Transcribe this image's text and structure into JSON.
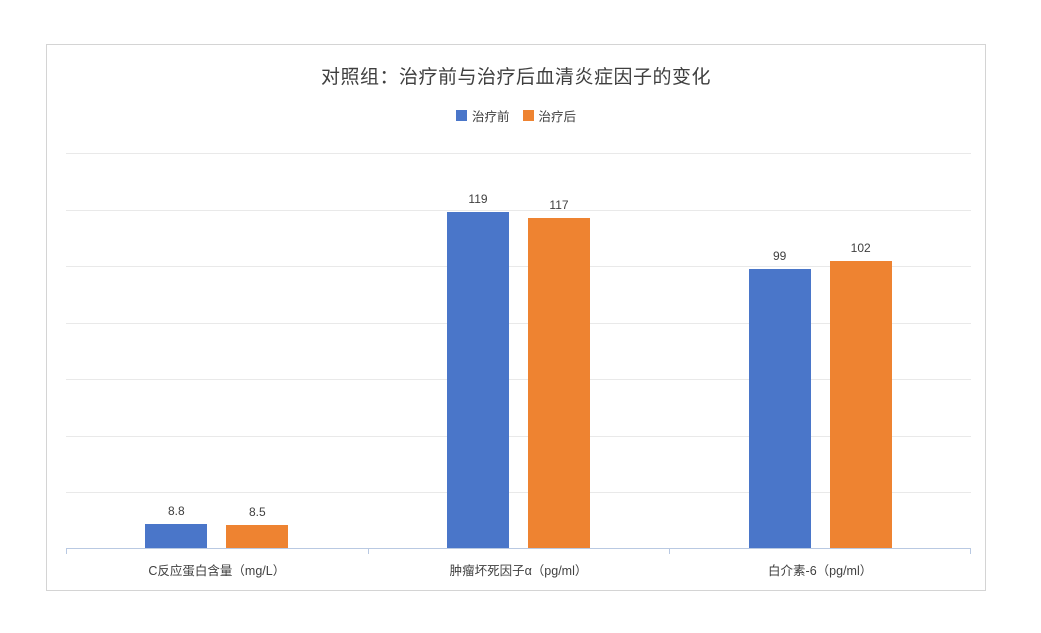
{
  "chart_data": {
    "type": "bar",
    "title": "对照组：治疗前与治疗后血清炎症因子的变化",
    "categories": [
      "C反应蛋白含量（mg/L）",
      "肿瘤坏死因子α（pg/ml）",
      "白介素-6（pg/ml）"
    ],
    "series": [
      {
        "name": "治疗前",
        "color": "#4A76C9",
        "values": [
          8.8,
          119,
          99
        ]
      },
      {
        "name": "治疗后",
        "color": "#EE8331",
        "values": [
          8.5,
          117,
          102
        ]
      }
    ],
    "data_labels_shown": [
      "8.8",
      "8.5",
      "119",
      "117",
      "99",
      "102"
    ],
    "xlabel": "",
    "ylabel": "",
    "ylim": [
      0,
      140
    ],
    "gridline_step": 20,
    "grid": true,
    "y_axis_tick_labels_visible": false,
    "legend_position": "top"
  },
  "colors": {
    "series_before": "#4A76C9",
    "series_after": "#EE8331",
    "gridline": "#e9e9e9",
    "axis_line": "#b9c9e2",
    "frame_border": "#d4d4d4",
    "title_text": "#3f3f3f",
    "label_text": "#404040",
    "background": "#ffffff"
  }
}
